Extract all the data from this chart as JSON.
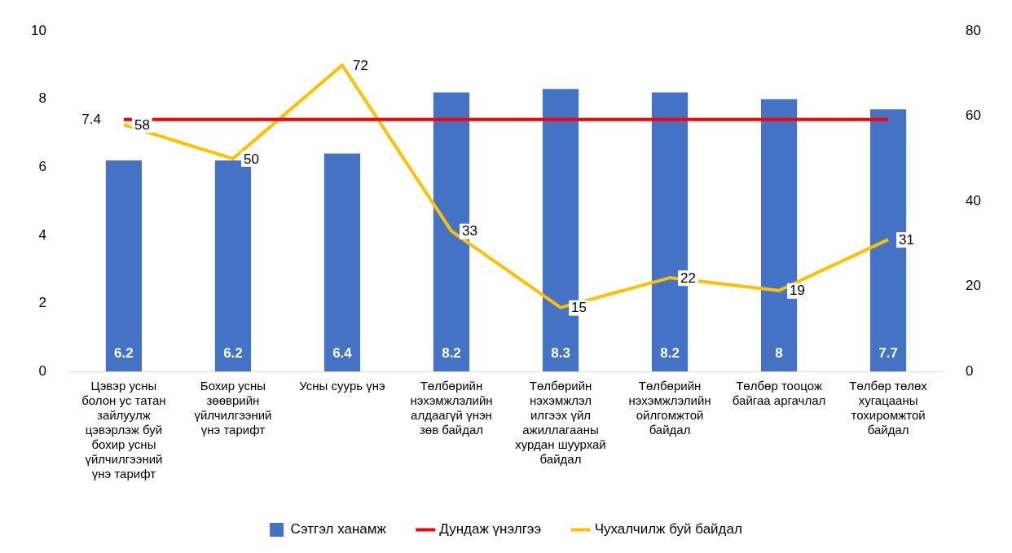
{
  "chart_data": {
    "type": "bar",
    "categories": [
      "Цэвэр усны болон ус татан зайлуулж цэвэрлэж буй бохир усны үйлчилгээний үнэ тарифт",
      "Бохир усны зөөврийн үйлчилгээний үнэ тарифт",
      "Усны суурь үнэ",
      "Төлбөрийн нэхэмжлэлийн алдаагүй үнэн зөв байдал",
      "Төлбөрийн нэхэмжлэл илгээх үйл ажиллагааны хурдан шуурхай байдал",
      "Төлбөрийн нэхэмжлэлийн ойлгомжтой байдал",
      "Төлбөр тооцож байгаа аргачлал",
      "Төлбөр төлөх хугацааны тохиромжтой байдал"
    ],
    "series": [
      {
        "name": "Сэтгэл ханамж",
        "color": "#4472c4",
        "values": [
          6.2,
          6.2,
          6.4,
          8.2,
          8.3,
          8.2,
          8,
          7.7
        ],
        "value_labels": [
          "6.2",
          "6.2",
          "6.4",
          "8.2",
          "8.3",
          "8.2",
          "8",
          "7.7"
        ]
      },
      {
        "name": "Дундаж үнэлгээ",
        "type": "line",
        "color": "#ff0000",
        "values": [
          7.4,
          7.4,
          7.4,
          7.4,
          7.4,
          7.4,
          7.4,
          7.4
        ],
        "value_labels": [
          "7.4",
          null,
          null,
          null,
          null,
          null,
          null,
          null
        ]
      },
      {
        "name": "Чухалчилж буй байдал",
        "type": "line",
        "axis": "y2",
        "color": "#ffc000",
        "values": [
          58,
          50,
          72,
          33,
          15,
          22,
          19,
          31
        ],
        "value_labels": [
          "58",
          "50",
          "72",
          "33",
          "15",
          "22",
          "19",
          "31"
        ]
      }
    ],
    "ylim": [
      0,
      10
    ],
    "yticks": [
      0,
      2,
      4,
      6,
      8,
      10
    ],
    "y2lim": [
      0,
      80
    ],
    "y2ticks": [
      0,
      20,
      40,
      60,
      80
    ],
    "grid": false,
    "legend": "bottom",
    "marker": "none",
    "line_style": "solid"
  }
}
